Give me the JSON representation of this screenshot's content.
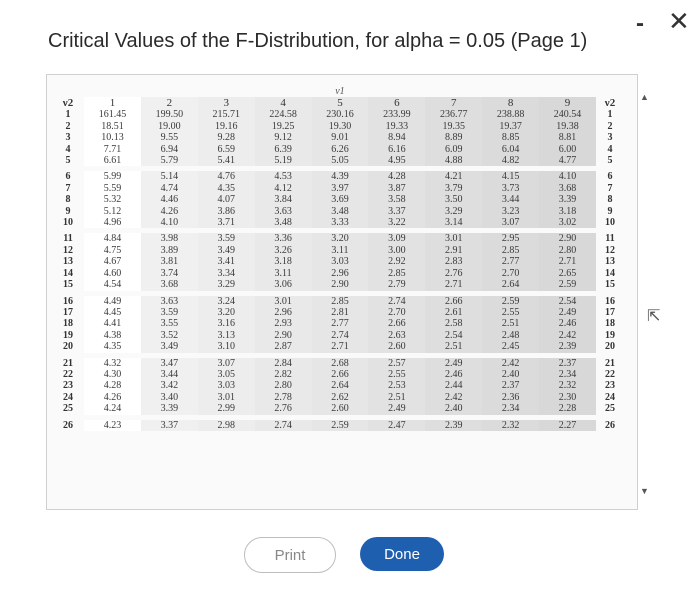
{
  "dialog": {
    "title": "Critical Values of the F-Distribution, for alpha = 0.05 (Page 1)",
    "minimize_symbol": "-",
    "close_symbol": "✕"
  },
  "table": {
    "v1_label": "ν1",
    "v2_label": "ν2",
    "columns": [
      "1",
      "2",
      "3",
      "4",
      "5",
      "6",
      "7",
      "8",
      "9"
    ],
    "rows": [
      {
        "v2": "1",
        "values": [
          "161.45",
          "199.50",
          "215.71",
          "224.58",
          "230.16",
          "233.99",
          "236.77",
          "238.88",
          "240.54"
        ]
      },
      {
        "v2": "2",
        "values": [
          "18.51",
          "19.00",
          "19.16",
          "19.25",
          "19.30",
          "19.33",
          "19.35",
          "19.37",
          "19.38"
        ]
      },
      {
        "v2": "3",
        "values": [
          "10.13",
          "9.55",
          "9.28",
          "9.12",
          "9.01",
          "8.94",
          "8.89",
          "8.85",
          "8.81"
        ]
      },
      {
        "v2": "4",
        "values": [
          "7.71",
          "6.94",
          "6.59",
          "6.39",
          "6.26",
          "6.16",
          "6.09",
          "6.04",
          "6.00"
        ]
      },
      {
        "v2": "5",
        "values": [
          "6.61",
          "5.79",
          "5.41",
          "5.19",
          "5.05",
          "4.95",
          "4.88",
          "4.82",
          "4.77"
        ]
      },
      {
        "v2": "6",
        "values": [
          "5.99",
          "5.14",
          "4.76",
          "4.53",
          "4.39",
          "4.28",
          "4.21",
          "4.15",
          "4.10"
        ]
      },
      {
        "v2": "7",
        "values": [
          "5.59",
          "4.74",
          "4.35",
          "4.12",
          "3.97",
          "3.87",
          "3.79",
          "3.73",
          "3.68"
        ]
      },
      {
        "v2": "8",
        "values": [
          "5.32",
          "4.46",
          "4.07",
          "3.84",
          "3.69",
          "3.58",
          "3.50",
          "3.44",
          "3.39"
        ]
      },
      {
        "v2": "9",
        "values": [
          "5.12",
          "4.26",
          "3.86",
          "3.63",
          "3.48",
          "3.37",
          "3.29",
          "3.23",
          "3.18"
        ]
      },
      {
        "v2": "10",
        "values": [
          "4.96",
          "4.10",
          "3.71",
          "3.48",
          "3.33",
          "3.22",
          "3.14",
          "3.07",
          "3.02"
        ]
      },
      {
        "v2": "11",
        "values": [
          "4.84",
          "3.98",
          "3.59",
          "3.36",
          "3.20",
          "3.09",
          "3.01",
          "2.95",
          "2.90"
        ]
      },
      {
        "v2": "12",
        "values": [
          "4.75",
          "3.89",
          "3.49",
          "3.26",
          "3.11",
          "3.00",
          "2.91",
          "2.85",
          "2.80"
        ]
      },
      {
        "v2": "13",
        "values": [
          "4.67",
          "3.81",
          "3.41",
          "3.18",
          "3.03",
          "2.92",
          "2.83",
          "2.77",
          "2.71"
        ]
      },
      {
        "v2": "14",
        "values": [
          "4.60",
          "3.74",
          "3.34",
          "3.11",
          "2.96",
          "2.85",
          "2.76",
          "2.70",
          "2.65"
        ]
      },
      {
        "v2": "15",
        "values": [
          "4.54",
          "3.68",
          "3.29",
          "3.06",
          "2.90",
          "2.79",
          "2.71",
          "2.64",
          "2.59"
        ]
      },
      {
        "v2": "16",
        "values": [
          "4.49",
          "3.63",
          "3.24",
          "3.01",
          "2.85",
          "2.74",
          "2.66",
          "2.59",
          "2.54"
        ]
      },
      {
        "v2": "17",
        "values": [
          "4.45",
          "3.59",
          "3.20",
          "2.96",
          "2.81",
          "2.70",
          "2.61",
          "2.55",
          "2.49"
        ]
      },
      {
        "v2": "18",
        "values": [
          "4.41",
          "3.55",
          "3.16",
          "2.93",
          "2.77",
          "2.66",
          "2.58",
          "2.51",
          "2.46"
        ]
      },
      {
        "v2": "19",
        "values": [
          "4.38",
          "3.52",
          "3.13",
          "2.90",
          "2.74",
          "2.63",
          "2.54",
          "2.48",
          "2.42"
        ]
      },
      {
        "v2": "20",
        "values": [
          "4.35",
          "3.49",
          "3.10",
          "2.87",
          "2.71",
          "2.60",
          "2.51",
          "2.45",
          "2.39"
        ]
      },
      {
        "v2": "21",
        "values": [
          "4.32",
          "3.47",
          "3.07",
          "2.84",
          "2.68",
          "2.57",
          "2.49",
          "2.42",
          "2.37"
        ]
      },
      {
        "v2": "22",
        "values": [
          "4.30",
          "3.44",
          "3.05",
          "2.82",
          "2.66",
          "2.55",
          "2.46",
          "2.40",
          "2.34"
        ]
      },
      {
        "v2": "23",
        "values": [
          "4.28",
          "3.42",
          "3.03",
          "2.80",
          "2.64",
          "2.53",
          "2.44",
          "2.37",
          "2.32"
        ]
      },
      {
        "v2": "24",
        "values": [
          "4.26",
          "3.40",
          "3.01",
          "2.78",
          "2.62",
          "2.51",
          "2.42",
          "2.36",
          "2.30"
        ]
      },
      {
        "v2": "25",
        "values": [
          "4.24",
          "3.39",
          "2.99",
          "2.76",
          "2.60",
          "2.49",
          "2.40",
          "2.34",
          "2.28"
        ]
      },
      {
        "v2": "26",
        "values": [
          "4.23",
          "3.37",
          "2.98",
          "2.74",
          "2.59",
          "2.47",
          "2.39",
          "2.32",
          "2.27"
        ]
      }
    ]
  },
  "buttons": {
    "print": "Print",
    "done": "Done"
  }
}
